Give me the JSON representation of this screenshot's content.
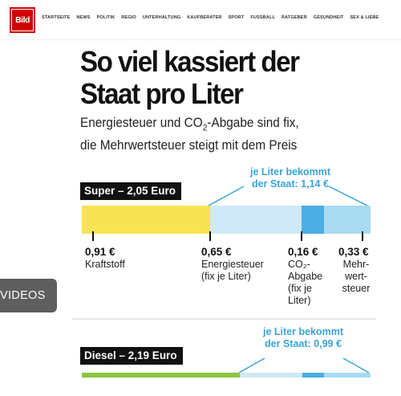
{
  "nav": {
    "logo_text": "Bild",
    "items": [
      "STARTSEITE",
      "NEWS",
      "POLITIK",
      "REGIO",
      "UNTERHALTUNG",
      "KAUFBERATER",
      "SPORT",
      "FUSSBALL",
      "RATGEBER",
      "GESUNDHEIT",
      "SEX & LIEBE"
    ]
  },
  "infographic": {
    "headline_line1": "So viel kassiert der",
    "headline_line2": "Staat pro Liter",
    "sub_line1_a": "Energiesteuer und CO",
    "sub_line1_sub": "2",
    "sub_line1_b": "-Abgabe sind fix,",
    "sub_line2": "die Mehrwertsteuer steigt mit dem Preis",
    "super": {
      "label": "Super – 2,05 Euro",
      "callout_line1": "je Liter bekommt",
      "callout_line2": "der Staat: 1,14 €",
      "segments": [
        {
          "value": 0.91,
          "color": "#f8e452"
        },
        {
          "value": 0.65,
          "color": "#cfe9f6"
        },
        {
          "value": 0.16,
          "color": "#4aaee3"
        },
        {
          "value": 0.33,
          "color": "#a8daf2"
        }
      ],
      "items": [
        {
          "value": "0,91 €",
          "desc": [
            "Kraftstoff"
          ]
        },
        {
          "value": "0,65 €",
          "desc": [
            "Energiesteuer",
            "(fix je Liter)"
          ]
        },
        {
          "value": "0,16 €",
          "desc": [
            "CO₂-",
            "Abgabe",
            "(fix je",
            "Liter)"
          ]
        },
        {
          "value": "0,33 €",
          "desc": [
            "Mehr-",
            "wert-",
            "steuer"
          ]
        }
      ]
    },
    "diesel": {
      "label": "Diesel – 2,19 Euro",
      "callout_line1": "je Liter bekommt",
      "callout_line2": "der Staat: 0,99 €",
      "segments": [
        {
          "value": 1.2,
          "color": "#8cc63f"
        },
        {
          "value": 0.47,
          "color": "#cfe9f6"
        },
        {
          "value": 0.17,
          "color": "#4aaee3"
        },
        {
          "value": 0.35,
          "color": "#a8daf2"
        }
      ]
    }
  },
  "videos_button": "VIDEOS",
  "colors": {
    "brand_red": "#d00000",
    "accent_blue": "#3aa3d9"
  }
}
